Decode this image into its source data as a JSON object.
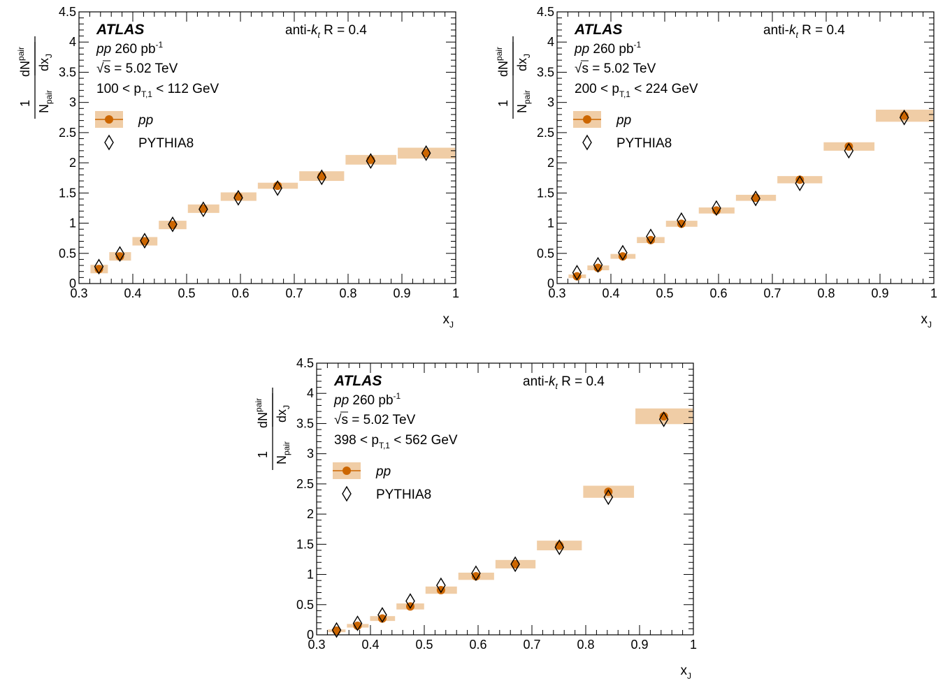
{
  "figure": {
    "experiment": "ATLAS",
    "jet_algo_prefix": "anti-",
    "jet_algo_k": "k",
    "jet_algo_t": "t",
    "jet_algo_radius": "R = 0.4",
    "system": "pp",
    "lumi": "260 pb",
    "lumi_exp": "-1",
    "sqrt_sym": "√",
    "energy": "s = 5.02 TeV",
    "ylabel_num_main": "dN",
    "ylabel_num_sub": "pair",
    "ylabel_den_main": "dx",
    "ylabel_den_sub": "J",
    "ylabel_pref_num": "1",
    "ylabel_pref_den_main": "N",
    "ylabel_pref_den_sub": "pair",
    "xlabel_main": "x",
    "xlabel_sub": "J",
    "legend_data": "pp",
    "legend_mc": "PYTHIA8",
    "pt_p": "p",
    "pt_sub": "T,1",
    "colors": {
      "data_marker": "#cc6600",
      "data_band": "#f0cda6",
      "mc_marker": "#000000"
    }
  },
  "chart_data": [
    {
      "type": "scatter",
      "pt_lo": "100 <",
      "pt_hi": "< 112 GeV",
      "xlim": [
        0.3,
        1.0
      ],
      "ylim": [
        0,
        4.5
      ],
      "x_ticks": [
        "0.3",
        "0.4",
        "0.5",
        "0.6",
        "0.7",
        "0.8",
        "0.9",
        "1"
      ],
      "y_ticks": [
        "0",
        "0.5",
        "1",
        "1.5",
        "2",
        "2.5",
        "3",
        "3.5",
        "4",
        "4.5"
      ],
      "bin_edges": [
        0.32,
        0.355,
        0.398,
        0.447,
        0.501,
        0.562,
        0.631,
        0.708,
        0.794,
        0.891,
        1.0
      ],
      "series": [
        {
          "name": "pp",
          "x": [
            0.337,
            0.376,
            0.422,
            0.474,
            0.531,
            0.596,
            0.669,
            0.751,
            0.842,
            0.945
          ],
          "y": [
            0.24,
            0.45,
            0.7,
            0.97,
            1.24,
            1.44,
            1.62,
            1.78,
            2.05,
            2.16
          ],
          "syst": [
            0.07,
            0.07,
            0.07,
            0.07,
            0.07,
            0.07,
            0.05,
            0.08,
            0.08,
            0.09
          ]
        },
        {
          "name": "PYTHIA8",
          "x": [
            0.337,
            0.376,
            0.422,
            0.474,
            0.531,
            0.596,
            0.669,
            0.751,
            0.842,
            0.945
          ],
          "y": [
            0.28,
            0.49,
            0.71,
            0.98,
            1.23,
            1.42,
            1.58,
            1.76,
            2.03,
            2.16
          ]
        }
      ]
    },
    {
      "type": "scatter",
      "pt_lo": "200 <",
      "pt_hi": "< 224 GeV",
      "xlim": [
        0.3,
        1.0
      ],
      "ylim": [
        0,
        4.5
      ],
      "x_ticks": [
        "0.3",
        "0.4",
        "0.5",
        "0.6",
        "0.7",
        "0.8",
        "0.9",
        "1"
      ],
      "y_ticks": [
        "0",
        "0.5",
        "1",
        "1.5",
        "2",
        "2.5",
        "3",
        "3.5",
        "4",
        "4.5"
      ],
      "bin_edges": [
        0.32,
        0.355,
        0.398,
        0.447,
        0.501,
        0.562,
        0.631,
        0.708,
        0.794,
        0.891,
        1.0
      ],
      "series": [
        {
          "name": "pp",
          "x": [
            0.337,
            0.376,
            0.422,
            0.474,
            0.531,
            0.596,
            0.669,
            0.751,
            0.842,
            0.945
          ],
          "y": [
            0.12,
            0.26,
            0.45,
            0.72,
            0.99,
            1.21,
            1.42,
            1.72,
            2.27,
            2.78
          ],
          "syst": [
            0.03,
            0.04,
            0.04,
            0.05,
            0.05,
            0.05,
            0.05,
            0.06,
            0.07,
            0.1
          ]
        },
        {
          "name": "PYTHIA8",
          "x": [
            0.337,
            0.376,
            0.422,
            0.474,
            0.531,
            0.596,
            0.669,
            0.751,
            0.842,
            0.945
          ],
          "y": [
            0.18,
            0.31,
            0.51,
            0.78,
            1.05,
            1.25,
            1.41,
            1.66,
            2.2,
            2.75
          ]
        }
      ]
    },
    {
      "type": "scatter",
      "pt_lo": "398 <",
      "pt_hi": "< 562 GeV",
      "xlim": [
        0.3,
        1.0
      ],
      "ylim": [
        0,
        4.5
      ],
      "x_ticks": [
        "0.3",
        "0.4",
        "0.5",
        "0.6",
        "0.7",
        "0.8",
        "0.9",
        "1"
      ],
      "y_ticks": [
        "0",
        "0.5",
        "1",
        "1.5",
        "2",
        "2.5",
        "3",
        "3.5",
        "4",
        "4.5"
      ],
      "bin_edges": [
        0.32,
        0.355,
        0.398,
        0.447,
        0.501,
        0.562,
        0.631,
        0.708,
        0.794,
        0.891,
        1.0
      ],
      "series": [
        {
          "name": "pp",
          "x": [
            0.337,
            0.376,
            0.422,
            0.474,
            0.531,
            0.596,
            0.669,
            0.751,
            0.842,
            0.945
          ],
          "y": [
            0.07,
            0.15,
            0.27,
            0.47,
            0.74,
            0.97,
            1.17,
            1.48,
            2.37,
            3.62
          ],
          "syst": [
            0.02,
            0.03,
            0.04,
            0.05,
            0.06,
            0.06,
            0.07,
            0.08,
            0.1,
            0.13
          ]
        },
        {
          "name": "PYTHIA8",
          "x": [
            0.337,
            0.376,
            0.422,
            0.474,
            0.531,
            0.596,
            0.669,
            0.751,
            0.842,
            0.945
          ],
          "y": [
            0.08,
            0.19,
            0.33,
            0.56,
            0.82,
            1.02,
            1.17,
            1.45,
            2.28,
            3.57
          ]
        }
      ]
    }
  ]
}
